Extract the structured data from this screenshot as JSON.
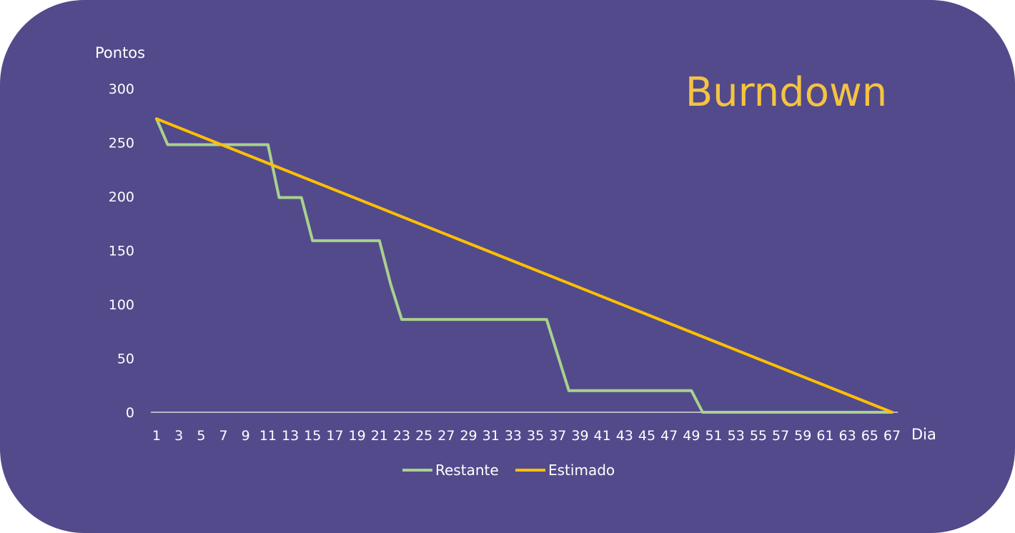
{
  "chart_data": {
    "type": "line",
    "title": "Burndown",
    "xlabel": "Dia",
    "ylabel": "Pontos",
    "ylim": [
      0,
      300
    ],
    "xlim": [
      1,
      67
    ],
    "yticks": [
      0,
      50,
      100,
      150,
      200,
      250,
      300
    ],
    "xticks": [
      1,
      3,
      5,
      7,
      9,
      11,
      13,
      15,
      17,
      19,
      21,
      23,
      25,
      27,
      29,
      31,
      33,
      35,
      37,
      39,
      41,
      43,
      45,
      47,
      49,
      51,
      53,
      55,
      57,
      59,
      61,
      63,
      65,
      67
    ],
    "legend_position": "bottom",
    "grid": false,
    "series": [
      {
        "name": "Restante",
        "color": "#A9D18E",
        "x": [
          1,
          2,
          11,
          12,
          14,
          15,
          21,
          22,
          23,
          36,
          38,
          49,
          50,
          67
        ],
        "y": [
          272,
          248,
          248,
          199,
          199,
          159,
          159,
          119,
          86,
          86,
          20,
          20,
          0,
          0
        ]
      },
      {
        "name": "Estimado",
        "color": "#FFC000",
        "x": [
          1,
          67
        ],
        "y": [
          272,
          0
        ]
      }
    ]
  },
  "colors": {
    "background": "#534A8B",
    "title": "#F4C342",
    "axis_line": "#D9D9D9",
    "text": "#FFFFFF"
  }
}
